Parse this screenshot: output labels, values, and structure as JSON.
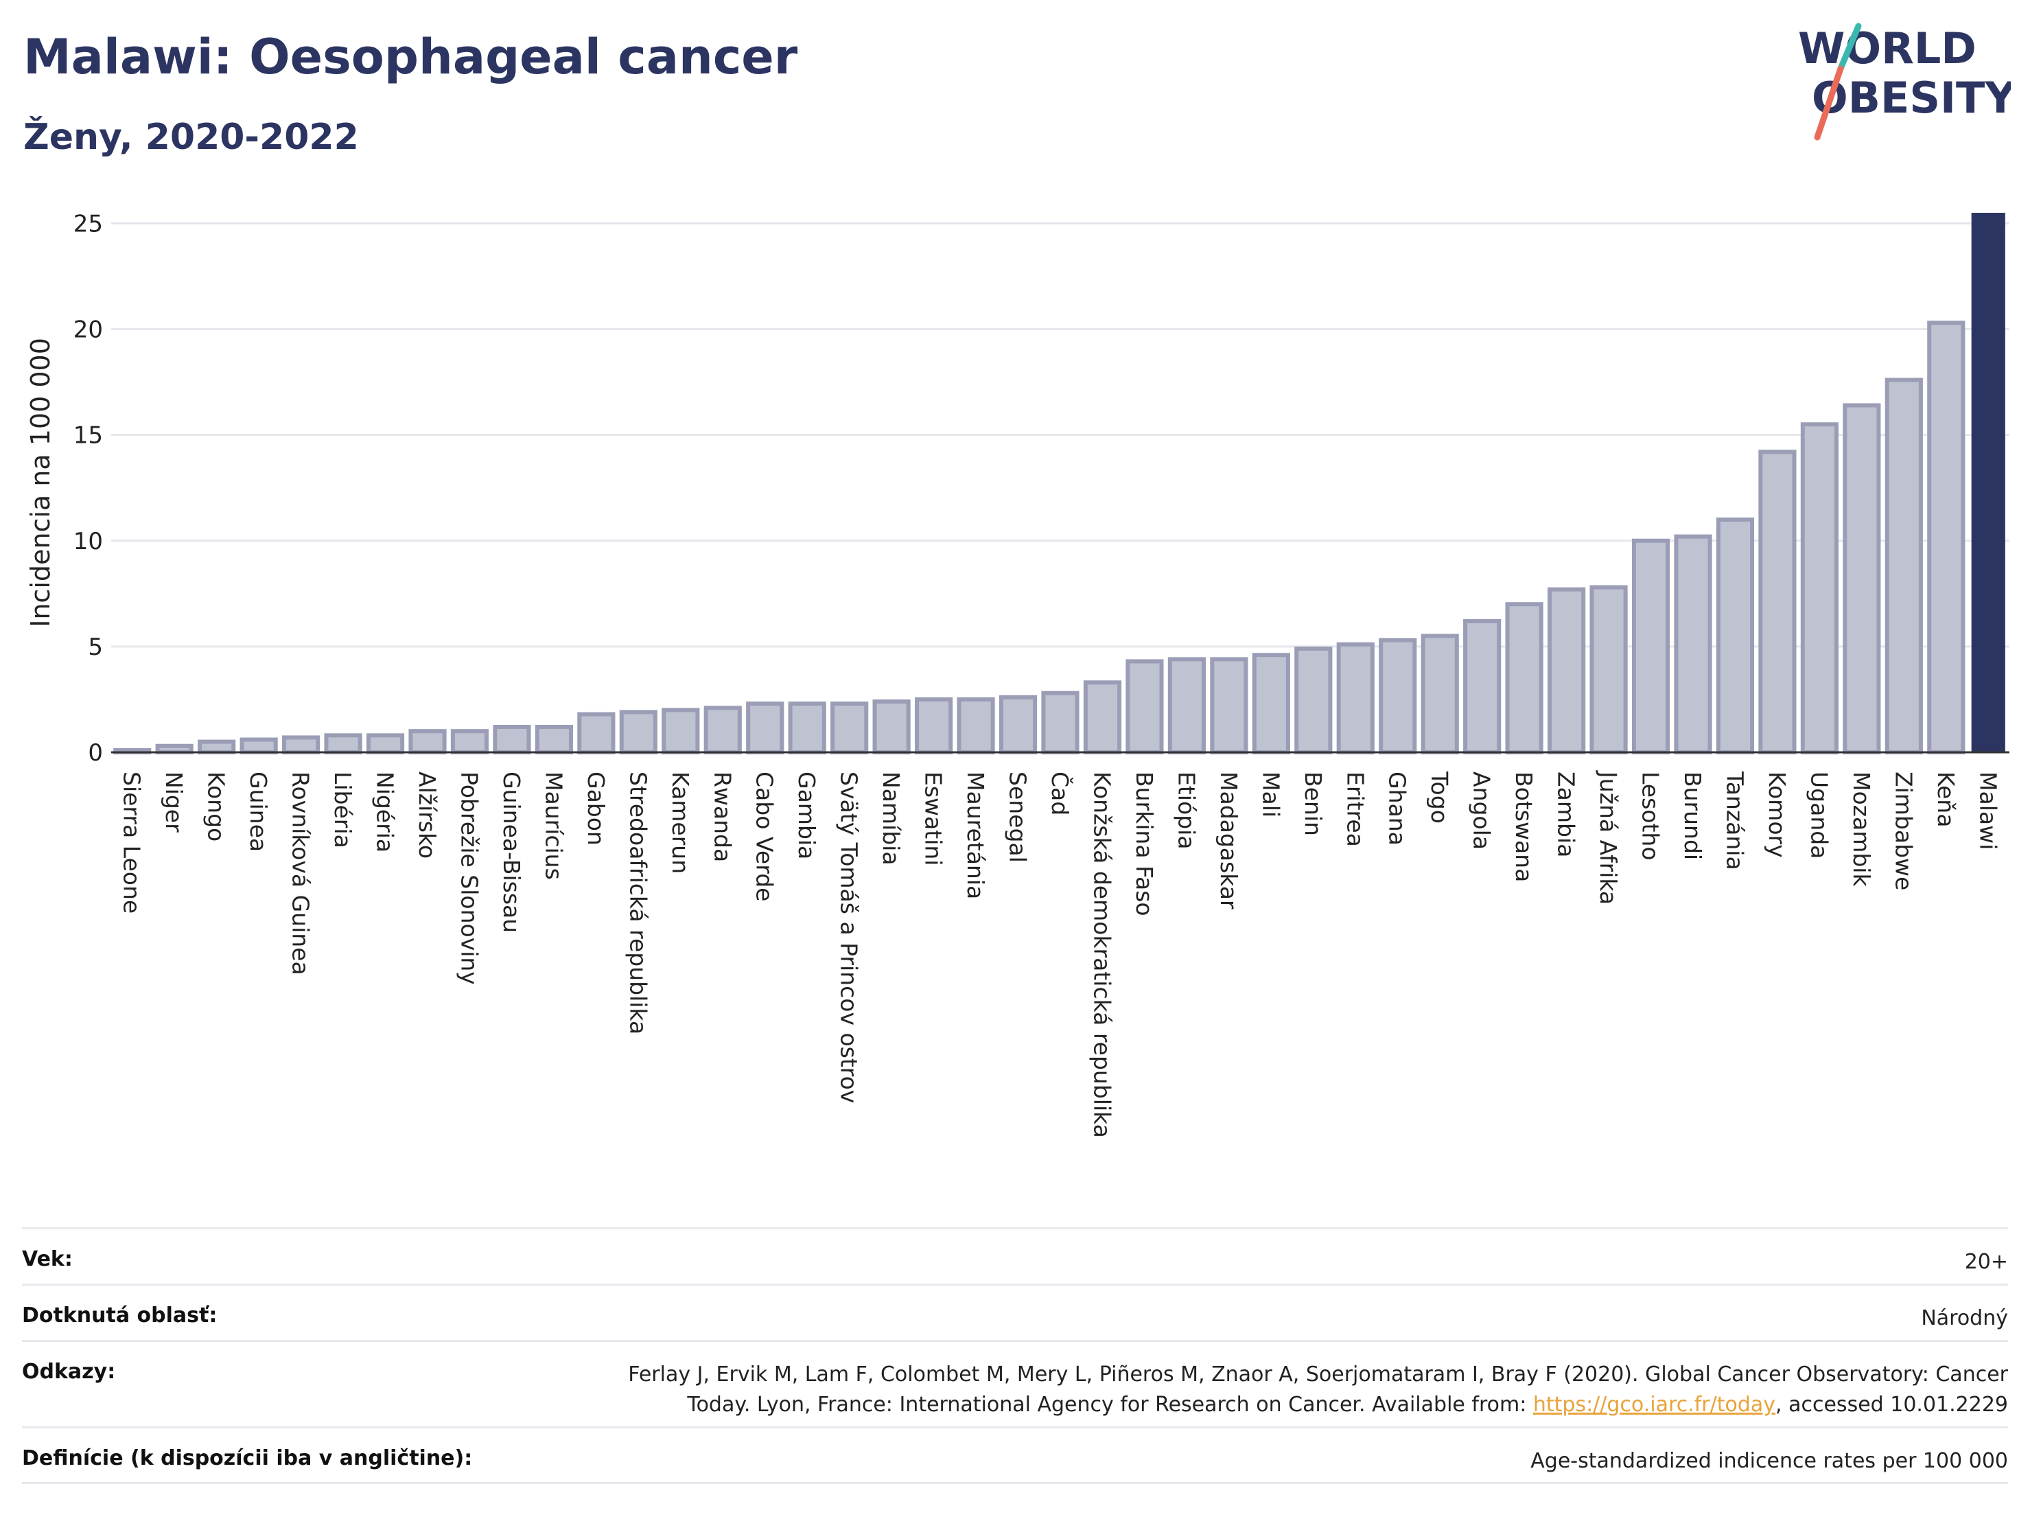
{
  "header": {
    "title": "Malawi: Oesophageal cancer",
    "subtitle": "Ženy, 2020-2022",
    "logo_line1": "WORLD",
    "logo_line2": "OBESITY"
  },
  "colors": {
    "bar": "#bfc2d1",
    "bar_stroke": "#9a9db5",
    "highlight": "#2c3561",
    "title": "#2c3561",
    "grid": "#e6e6ec",
    "logo_teal": "#3ab8b0",
    "logo_coral": "#ea6b5a"
  },
  "chart_data": {
    "type": "bar",
    "title": "Malawi: Oesophageal cancer",
    "subtitle": "Ženy, 2020-2022",
    "ylabel": "Incidencia na 100 000",
    "xlabel": "",
    "ylim": [
      0,
      25.5
    ],
    "yticks": [
      0,
      5,
      10,
      15,
      20,
      25
    ],
    "grid": true,
    "highlight_category": "Malawi",
    "categories": [
      "Sierra Leone",
      "Niger",
      "Kongo",
      "Guinea",
      "Rovníková Guinea",
      "Libéria",
      "Nigéria",
      "Alžírsko",
      "Pobrežie Slonoviny",
      "Guinea-Bissau",
      "Maurícius",
      "Gabon",
      "Stredoafrická republika",
      "Kamerun",
      "Rwanda",
      "Cabo Verde",
      "Gambia",
      "Svätý Tomáš a Princov ostrov",
      "Namíbia",
      "Eswatini",
      "Mauretánia",
      "Senegal",
      "Čad",
      "Konžská demokratická republika",
      "Burkina Faso",
      "Etiópia",
      "Madagaskar",
      "Mali",
      "Benin",
      "Eritrea",
      "Ghana",
      "Togo",
      "Angola",
      "Botswana",
      "Zambia",
      "Južná Afrika",
      "Lesotho",
      "Burundi",
      "Tanzánia",
      "Komory",
      "Uganda",
      "Mozambik",
      "Zimbabwe",
      "Keňa",
      "Malawi"
    ],
    "values": [
      0.1,
      0.3,
      0.5,
      0.6,
      0.7,
      0.8,
      0.8,
      1.0,
      1.0,
      1.2,
      1.2,
      1.8,
      1.9,
      2.0,
      2.1,
      2.3,
      2.3,
      2.3,
      2.4,
      2.5,
      2.5,
      2.6,
      2.8,
      3.3,
      4.3,
      4.4,
      4.4,
      4.6,
      4.9,
      5.1,
      5.3,
      5.5,
      6.2,
      7.0,
      7.7,
      7.8,
      10.0,
      10.2,
      11.0,
      14.2,
      15.5,
      16.4,
      17.6,
      20.3,
      25.5
    ]
  },
  "info_table": {
    "age_label": "Vek:",
    "age_value": "20+",
    "area_label": "Dotknutá oblasť:",
    "area_value": "Národný",
    "refs_label": "Odkazy:",
    "refs_line1": "Ferlay J, Ervik M, Lam F, Colombet M, Mery L, Piñeros M, Znaor A, Soerjomataram I, Bray F (2020). Global Cancer Observatory: Cancer",
    "refs_line2_pre": "Today. Lyon, France: International Agency for Research on Cancer. Available from: ",
    "refs_link": "https://gco.iarc.fr/today",
    "refs_line2_post": ", accessed 10.01.2229",
    "def_label": "Definície (k dispozícii iba v angličtine):",
    "def_value": "Age-standardized indicence rates per 100 000"
  }
}
